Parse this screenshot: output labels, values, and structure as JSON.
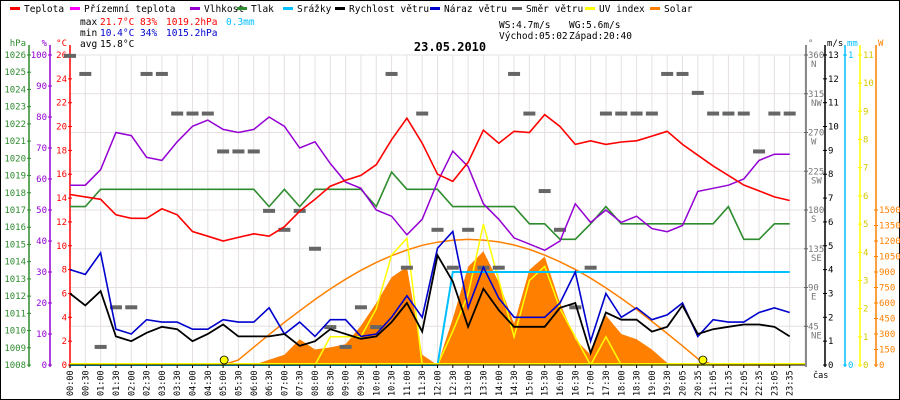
{
  "legend": [
    {
      "label": "Teplota",
      "color": "#ff0000"
    },
    {
      "label": "Přízemní teplota",
      "color": "#ff00ff"
    },
    {
      "label": "Vlhkost",
      "color": "#9400d3"
    },
    {
      "label": "Tlak",
      "color": "#2e8b2e"
    },
    {
      "label": "Srážky",
      "color": "#00bfff"
    },
    {
      "label": "Rychlost větru",
      "color": "#000000"
    },
    {
      "label": "Náraz větru",
      "color": "#0000cd"
    },
    {
      "label": "Směr větru",
      "color": "#666666"
    },
    {
      "label": "UV index",
      "color": "#ffff00"
    },
    {
      "label": "Solar",
      "color": "#ff8000"
    }
  ],
  "stats": {
    "max_label": "max",
    "max_temp": "21.7°C",
    "max_hum": "83%",
    "max_press": "1019.2hPa",
    "rain": "0.3mm",
    "min_label": "min",
    "min_temp": "10.4°C",
    "min_hum": "34%",
    "min_press": "1015.2hPa",
    "avg_label": "avg",
    "avg_temp": "15.8°C",
    "ws": "WS:4.7m/s",
    "wg": "WG:5.6m/s",
    "sunrise": "Východ:05:02",
    "sunset": "Západ:20:40"
  },
  "chart_data": {
    "type": "line",
    "title": "23.05.2010",
    "xlabel": "čas",
    "grid": true,
    "x": [
      "00:00",
      "00:30",
      "01:00",
      "01:30",
      "02:00",
      "02:30",
      "03:00",
      "03:30",
      "04:00",
      "04:30",
      "05:00",
      "05:30",
      "06:00",
      "06:30",
      "07:00",
      "07:30",
      "08:00",
      "08:30",
      "09:00",
      "09:30",
      "10:00",
      "10:30",
      "11:00",
      "11:30",
      "12:00",
      "12:30",
      "13:00",
      "13:30",
      "14:00",
      "14:30",
      "15:00",
      "15:30",
      "16:00",
      "16:30",
      "17:00",
      "17:30",
      "18:00",
      "18:30",
      "19:00",
      "19:30",
      "20:05",
      "20:35",
      "21:05",
      "21:35",
      "22:05",
      "22:35",
      "23:05",
      "23:35"
    ],
    "axes": {
      "pressure": {
        "unit": "hPa",
        "range": [
          1008,
          1026
        ],
        "ticks": [
          1026,
          1025,
          1024,
          1023,
          1022,
          1021,
          1020,
          1019,
          1018,
          1017,
          1016,
          1015,
          1014,
          1013,
          1012,
          1011,
          1010,
          1009,
          1008
        ],
        "color": "#2e8b2e"
      },
      "humidity": {
        "unit": "%",
        "range": [
          0,
          100
        ],
        "ticks": [
          100,
          90,
          80,
          70,
          60,
          50,
          40,
          30,
          20,
          10,
          0
        ],
        "color": "#9400d3"
      },
      "temperature": {
        "unit": "°C",
        "range": [
          0,
          26
        ],
        "ticks": [
          26,
          24,
          22,
          20,
          18,
          16,
          14,
          12,
          10,
          8,
          6,
          4,
          2,
          0
        ],
        "color": "#ff0000"
      },
      "direction": {
        "unit": "°",
        "range": [
          0,
          360
        ],
        "ticks": [
          {
            "value": "360",
            "label": "N"
          },
          {
            "value": "315",
            "label": "NW"
          },
          {
            "value": "270",
            "label": "W"
          },
          {
            "value": "225",
            "label": "SW"
          },
          {
            "value": "180",
            "label": "S"
          },
          {
            "value": "135",
            "label": "SE"
          },
          {
            "value": "90",
            "label": "E"
          },
          {
            "value": "45",
            "label": "NE"
          }
        ],
        "color": "#666666"
      },
      "wind": {
        "unit": "m/s",
        "range": [
          0,
          13
        ],
        "ticks": [
          13,
          12,
          11,
          10,
          9,
          8,
          7,
          6,
          5,
          4,
          3,
          2,
          1,
          0
        ],
        "color": "#000000"
      },
      "rain": {
        "unit": "mm",
        "range": [
          0,
          1
        ],
        "ticks": [
          1,
          0
        ],
        "color": "#00bfff"
      },
      "uv": {
        "unit": "",
        "range": [
          0,
          11
        ],
        "ticks": [
          11,
          10,
          9,
          8,
          7,
          6,
          5,
          4,
          3,
          2,
          1,
          0
        ],
        "color": "#ffff00"
      },
      "solar": {
        "unit": "W",
        "range": [
          0,
          1500
        ],
        "ticks": [
          1500,
          1350,
          1200,
          1050,
          900,
          750,
          600,
          450,
          300,
          150,
          0
        ],
        "color": "#ff8000"
      }
    },
    "series": [
      {
        "name": "Teplota",
        "axis": "temperature",
        "color": "#ff0000",
        "values": [
          14.3,
          14.1,
          13.9,
          12.6,
          12.3,
          12.3,
          13.1,
          12.6,
          11.2,
          10.8,
          10.4,
          10.7,
          11.0,
          10.8,
          11.6,
          12.9,
          13.9,
          15.0,
          15.5,
          15.9,
          16.8,
          18.9,
          20.7,
          18.6,
          16.0,
          15.4,
          17.0,
          19.7,
          18.6,
          19.6,
          19.5,
          21.0,
          20.0,
          18.5,
          18.8,
          18.5,
          18.7,
          18.8,
          19.2,
          19.6,
          18.5,
          17.6,
          16.7,
          15.9,
          15.1,
          14.6,
          14.1,
          13.8
        ]
      },
      {
        "name": "Vlhkost",
        "axis": "humidity",
        "color": "#9400d3",
        "values": [
          58,
          58,
          63,
          75,
          74,
          67,
          66,
          72,
          77,
          79,
          76,
          75,
          76,
          80,
          77,
          70,
          72,
          65,
          59,
          57,
          50,
          48,
          42,
          47,
          59,
          69,
          64,
          52,
          47,
          41,
          39,
          37,
          40,
          52,
          46,
          50,
          46,
          48,
          44,
          43,
          45,
          56,
          57,
          58,
          60,
          66,
          68,
          68
        ]
      },
      {
        "name": "Tlak",
        "axis": "pressure",
        "color": "#2e8b2e",
        "values": [
          1017.2,
          1017.2,
          1018.2,
          1018.2,
          1018.2,
          1018.2,
          1018.2,
          1018.2,
          1018.2,
          1018.2,
          1018.2,
          1018.2,
          1018.2,
          1017.2,
          1018.2,
          1017.2,
          1018.2,
          1018.2,
          1018.2,
          1018.2,
          1017.2,
          1019.2,
          1018.2,
          1018.2,
          1018.2,
          1017.2,
          1017.2,
          1017.2,
          1017.2,
          1017.2,
          1016.2,
          1016.2,
          1015.3,
          1015.3,
          1016.2,
          1017.2,
          1016.2,
          1016.2,
          1016.2,
          1016.2,
          1016.2,
          1016.2,
          1016.2,
          1017.2,
          1015.3,
          1015.3,
          1016.2,
          1016.2
        ]
      },
      {
        "name": "Srážky",
        "axis": "rain",
        "color": "#00bfff",
        "values": [
          0,
          0,
          0,
          0,
          0,
          0,
          0,
          0,
          0,
          0,
          0,
          0,
          0,
          0,
          0,
          0,
          0,
          0,
          0,
          0,
          0,
          0,
          0,
          0,
          0,
          0.3,
          0.3,
          0.3,
          0.3,
          0.3,
          0.3,
          0.3,
          0.3,
          0.3,
          0.3,
          0.3,
          0.3,
          0.3,
          0.3,
          0.3,
          0.3,
          0.3,
          0.3,
          0.3,
          0.3,
          0.3,
          0.3,
          0.3
        ]
      },
      {
        "name": "Rychlost větru",
        "axis": "wind",
        "color": "#000000",
        "values": [
          3.0,
          2.5,
          3.1,
          1.2,
          1.0,
          1.35,
          1.6,
          1.5,
          1.0,
          1.3,
          1.7,
          1.2,
          1.2,
          1.2,
          1.3,
          0.8,
          1.0,
          1.5,
          1.3,
          1.1,
          1.2,
          1.8,
          2.6,
          1.4,
          4.6,
          3.5,
          1.6,
          3.2,
          2.3,
          1.6,
          1.6,
          1.6,
          2.4,
          2.6,
          0.5,
          2.2,
          1.9,
          1.9,
          1.4,
          1.6,
          2.5,
          1.3,
          1.5,
          1.6,
          1.7,
          1.7,
          1.6,
          1.2
        ]
      },
      {
        "name": "Náraz větru",
        "axis": "wind",
        "color": "#0000cd",
        "values": [
          4.0,
          3.8,
          4.7,
          1.5,
          1.3,
          1.9,
          1.8,
          1.8,
          1.5,
          1.5,
          1.9,
          1.8,
          1.8,
          2.4,
          1.3,
          1.8,
          1.2,
          1.9,
          1.9,
          1.2,
          1.3,
          2.0,
          2.9,
          2.0,
          4.9,
          5.6,
          2.4,
          4.1,
          2.8,
          2.0,
          2.0,
          2.0,
          2.6,
          3.9,
          1.0,
          3.0,
          2.0,
          2.4,
          1.9,
          2.1,
          2.6,
          1.2,
          1.9,
          1.8,
          1.8,
          2.2,
          2.4,
          2.2
        ]
      },
      {
        "name": "Směr větru",
        "axis": "direction",
        "color": "#666666",
        "values": [
          359,
          338,
          21,
          67,
          67,
          338,
          338,
          292,
          292,
          292,
          248,
          248,
          248,
          179,
          157,
          179,
          135,
          44,
          21,
          67,
          44,
          338,
          113,
          292,
          157,
          113,
          157,
          113,
          113,
          338,
          292,
          202,
          157,
          67,
          113,
          292,
          292,
          292,
          292,
          338,
          338,
          316,
          292,
          292,
          292,
          248,
          292,
          292
        ]
      },
      {
        "name": "UV index",
        "axis": "uv",
        "color": "#ffff00",
        "values": [
          0,
          0,
          0,
          0,
          0,
          0,
          0,
          0,
          0,
          0,
          0,
          0,
          0,
          0,
          0,
          0,
          0,
          1.0,
          1.0,
          1.0,
          2.0,
          3.9,
          4.5,
          0,
          0,
          1.2,
          2.5,
          5.0,
          3.0,
          1.0,
          3.0,
          3.5,
          2.0,
          1.0,
          0,
          1.0,
          0,
          0,
          0,
          0,
          0,
          0,
          0,
          0,
          0,
          0,
          0,
          0
        ]
      },
      {
        "name": "Solar",
        "axis": "solar",
        "color": "#ff8000",
        "values": [
          0,
          0,
          0,
          0,
          0,
          0,
          0,
          0,
          0,
          0,
          0,
          0,
          0,
          50,
          100,
          250,
          150,
          170,
          200,
          380,
          600,
          850,
          950,
          100,
          0,
          450,
          950,
          1100,
          800,
          400,
          920,
          1050,
          600,
          250,
          100,
          480,
          300,
          250,
          150,
          20,
          0,
          0,
          0,
          0,
          0,
          0,
          0,
          0
        ]
      },
      {
        "axis": "solar",
        "color": "#ff8000",
        "values": [
          0,
          0,
          0,
          0,
          0,
          0,
          0,
          0,
          0,
          0,
          0,
          49,
          172,
          294,
          412,
          525,
          634,
          736,
          830,
          916,
          993,
          1058,
          1113,
          1158,
          1188,
          1208,
          1215,
          1209,
          1191,
          1161,
          1119,
          1064,
          999,
          925,
          840,
          746,
          645,
          538,
          422,
          305,
          185,
          61,
          0,
          0,
          0,
          0,
          0,
          0
        ]
      }
    ],
    "sun_markers": [
      "05:02",
      "20:40"
    ]
  }
}
